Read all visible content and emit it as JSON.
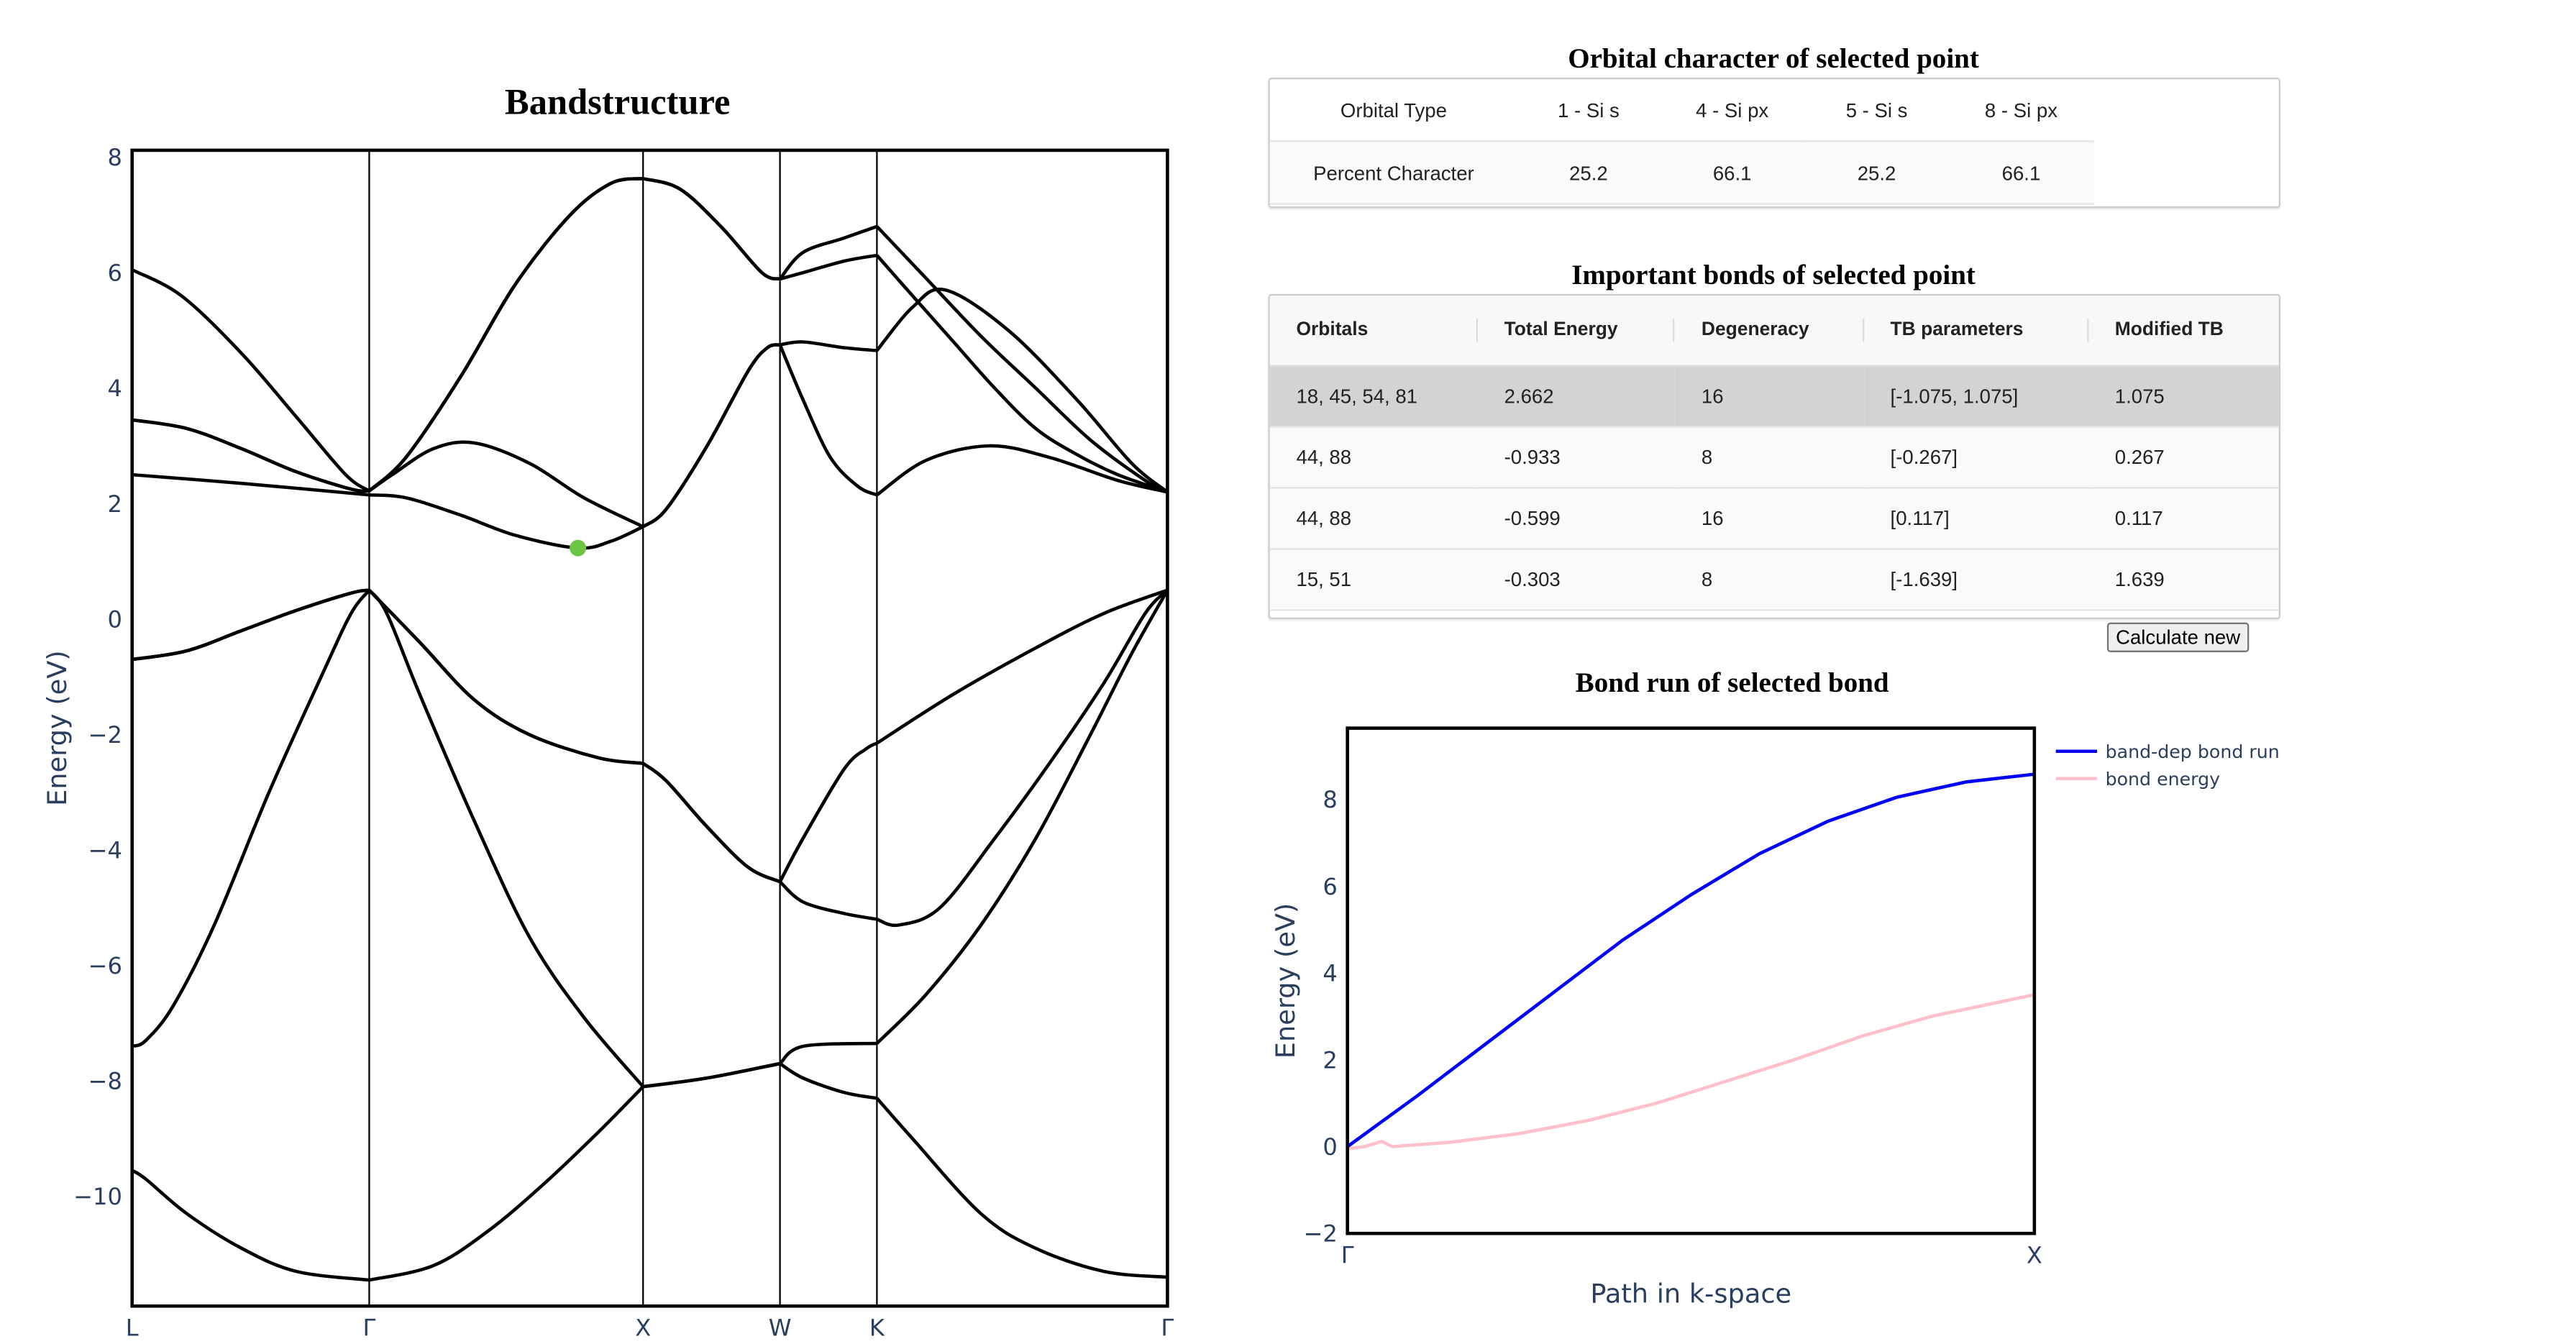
{
  "orbital_panel": {
    "title": "Orbital character of selected point",
    "header": [
      "Orbital Type",
      "1 - Si s",
      "4 - Si px",
      "5 - Si s",
      "8 - Si px"
    ],
    "row": [
      "Percent Character",
      "25.2",
      "66.1",
      "25.2",
      "66.1"
    ]
  },
  "bonds_panel": {
    "title": "Important bonds of selected point",
    "columns": [
      "Orbitals",
      "Total Energy",
      "Degeneracy",
      "TB parameters",
      "Modified TB"
    ],
    "rows": [
      [
        "18, 45, 54, 81",
        "2.662",
        "16",
        "[-1.075, 1.075]",
        "1.075"
      ],
      [
        "44, 88",
        "-0.933",
        "8",
        "[-0.267]",
        "0.267"
      ],
      [
        "44, 88",
        "-0.599",
        "16",
        "[0.117]",
        "0.117"
      ],
      [
        "15, 51",
        "-0.303",
        "8",
        "[-1.639]",
        "1.639"
      ]
    ],
    "selected_row": 0,
    "selected_row_color": "#d3d3d3",
    "calculate_button": "Calculate new"
  },
  "chart_data": [
    {
      "type": "line",
      "title": "Bandstructure",
      "xlabel": "",
      "ylabel": "Energy (eV)",
      "xlim": [
        0,
        3.781
      ],
      "ylim": [
        -11.9,
        8.12
      ],
      "grid": false,
      "line_color": "#000000",
      "xticks": [
        {
          "value": 0,
          "label": "L"
        },
        {
          "value": 0.866,
          "label": "Γ"
        },
        {
          "value": 1.866,
          "label": "X"
        },
        {
          "value": 2.366,
          "label": "W"
        },
        {
          "value": 2.72,
          "label": "K"
        },
        {
          "value": 3.781,
          "label": "Γ"
        }
      ],
      "yticks": [
        {
          "value": 8,
          "label": "8"
        },
        {
          "value": 6,
          "label": "6"
        },
        {
          "value": 4,
          "label": "4"
        },
        {
          "value": 2,
          "label": "2"
        },
        {
          "value": 0,
          "label": "0"
        },
        {
          "value": -2,
          "label": "−2"
        },
        {
          "value": -4,
          "label": "−4"
        },
        {
          "value": -6,
          "label": "−6"
        },
        {
          "value": -8,
          "label": "−8"
        },
        {
          "value": -10,
          "label": "−10"
        }
      ],
      "selected_point": {
        "x": 1.628,
        "y": 1.23,
        "color": "#6cc644"
      },
      "series": [
        {
          "points": [
            [
              0,
              -9.55
            ],
            [
              0.05,
              -9.7
            ],
            [
              0.2,
              -10.3
            ],
            [
              0.4,
              -10.9
            ],
            [
              0.6,
              -11.3
            ],
            [
              0.866,
              -11.45
            ],
            [
              1.1,
              -11.2
            ],
            [
              1.3,
              -10.6
            ],
            [
              1.5,
              -9.8
            ],
            [
              1.7,
              -8.9
            ],
            [
              1.866,
              -8.1
            ],
            [
              2.1,
              -7.95
            ],
            [
              2.366,
              -7.7
            ],
            [
              2.45,
              -7.95
            ],
            [
              2.6,
              -8.2
            ],
            [
              2.72,
              -8.3
            ],
            [
              2.85,
              -9.0
            ],
            [
              3.1,
              -10.3
            ],
            [
              3.3,
              -10.9
            ],
            [
              3.55,
              -11.3
            ],
            [
              3.781,
              -11.4
            ]
          ]
        },
        {
          "points": [
            [
              0,
              -7.4
            ],
            [
              0.05,
              -7.3
            ],
            [
              0.15,
              -6.7
            ],
            [
              0.3,
              -5.3
            ],
            [
              0.5,
              -3.0
            ],
            [
              0.7,
              -0.9
            ],
            [
              0.8,
              0.1
            ],
            [
              0.866,
              0.5
            ],
            [
              0.93,
              0.1
            ],
            [
              1.05,
              -1.3
            ],
            [
              1.25,
              -3.5
            ],
            [
              1.45,
              -5.5
            ],
            [
              1.65,
              -6.9
            ],
            [
              1.866,
              -8.1
            ],
            [
              2.1,
              -7.95
            ],
            [
              2.366,
              -7.7
            ],
            [
              2.45,
              -7.4
            ],
            [
              2.72,
              -7.35
            ],
            [
              2.9,
              -6.5
            ],
            [
              3.1,
              -5.3
            ],
            [
              3.3,
              -3.8
            ],
            [
              3.5,
              -2.0
            ],
            [
              3.65,
              -0.6
            ],
            [
              3.781,
              0.5
            ]
          ]
        },
        {
          "points": [
            [
              0,
              -0.7
            ],
            [
              0.2,
              -0.55
            ],
            [
              0.4,
              -0.2
            ],
            [
              0.6,
              0.15
            ],
            [
              0.8,
              0.45
            ],
            [
              0.866,
              0.5
            ],
            [
              1.05,
              -0.4
            ],
            [
              1.25,
              -1.4
            ],
            [
              1.45,
              -2.0
            ],
            [
              1.7,
              -2.4
            ],
            [
              1.866,
              -2.5
            ],
            [
              1.95,
              -2.8
            ],
            [
              2.1,
              -3.6
            ],
            [
              2.25,
              -4.3
            ],
            [
              2.366,
              -4.55
            ],
            [
              2.45,
              -4.9
            ],
            [
              2.6,
              -5.1
            ],
            [
              2.72,
              -5.2
            ],
            [
              2.8,
              -5.3
            ],
            [
              2.95,
              -5.0
            ],
            [
              3.15,
              -3.8
            ],
            [
              3.35,
              -2.5
            ],
            [
              3.55,
              -1.1
            ],
            [
              3.7,
              0.1
            ],
            [
              3.781,
              0.5
            ]
          ]
        },
        {
          "points": [
            [
              0,
              -0.7
            ],
            [
              0.2,
              -0.55
            ],
            [
              0.4,
              -0.2
            ],
            [
              0.6,
              0.15
            ],
            [
              0.8,
              0.45
            ],
            [
              0.866,
              0.5
            ],
            [
              1.05,
              -0.4
            ],
            [
              1.25,
              -1.4
            ],
            [
              1.45,
              -2.0
            ],
            [
              1.7,
              -2.4
            ],
            [
              1.866,
              -2.5
            ],
            [
              1.95,
              -2.8
            ],
            [
              2.1,
              -3.6
            ],
            [
              2.25,
              -4.3
            ],
            [
              2.366,
              -4.55
            ],
            [
              2.45,
              -3.8
            ],
            [
              2.6,
              -2.6
            ],
            [
              2.68,
              -2.25
            ],
            [
              2.72,
              -2.15
            ],
            [
              3.0,
              -1.3
            ],
            [
              3.3,
              -0.5
            ],
            [
              3.55,
              0.1
            ],
            [
              3.781,
              0.5
            ]
          ]
        },
        {
          "points": [
            [
              0,
              2.5
            ],
            [
              0.4,
              2.35
            ],
            [
              0.866,
              2.15
            ],
            [
              1.0,
              2.1
            ],
            [
              1.2,
              1.8
            ],
            [
              1.4,
              1.45
            ],
            [
              1.628,
              1.23
            ],
            [
              1.75,
              1.35
            ],
            [
              1.866,
              1.6
            ],
            [
              1.95,
              1.9
            ],
            [
              2.1,
              3.0
            ],
            [
              2.25,
              4.3
            ],
            [
              2.32,
              4.7
            ],
            [
              2.366,
              4.75
            ],
            [
              2.45,
              3.8
            ],
            [
              2.55,
              2.8
            ],
            [
              2.65,
              2.3
            ],
            [
              2.72,
              2.15
            ],
            [
              2.9,
              2.75
            ],
            [
              3.13,
              3.0
            ],
            [
              3.35,
              2.8
            ],
            [
              3.6,
              2.4
            ],
            [
              3.781,
              2.2
            ]
          ]
        },
        {
          "points": [
            [
              0,
              3.45
            ],
            [
              0.2,
              3.3
            ],
            [
              0.4,
              2.95
            ],
            [
              0.6,
              2.55
            ],
            [
              0.8,
              2.25
            ],
            [
              0.866,
              2.22
            ],
            [
              0.95,
              2.5
            ],
            [
              1.1,
              2.95
            ],
            [
              1.25,
              3.05
            ],
            [
              1.45,
              2.7
            ],
            [
              1.65,
              2.1
            ],
            [
              1.866,
              1.6
            ],
            [
              1.95,
              1.9
            ],
            [
              2.1,
              3.0
            ],
            [
              2.25,
              4.3
            ],
            [
              2.32,
              4.7
            ],
            [
              2.366,
              4.75
            ],
            [
              2.45,
              4.8
            ],
            [
              2.6,
              4.7
            ],
            [
              2.72,
              4.65
            ],
            [
              2.85,
              5.4
            ],
            [
              2.97,
              5.7
            ],
            [
              3.2,
              5.0
            ],
            [
              3.45,
              3.8
            ],
            [
              3.65,
              2.7
            ],
            [
              3.781,
              2.2
            ]
          ]
        },
        {
          "points": [
            [
              0,
              3.45
            ],
            [
              0.2,
              3.3
            ],
            [
              0.4,
              2.95
            ],
            [
              0.6,
              2.55
            ],
            [
              0.8,
              2.25
            ],
            [
              0.866,
              2.22
            ],
            [
              1.0,
              2.8
            ],
            [
              1.2,
              4.2
            ],
            [
              1.4,
              5.8
            ],
            [
              1.6,
              7.0
            ],
            [
              1.75,
              7.55
            ],
            [
              1.866,
              7.63
            ],
            [
              2.0,
              7.45
            ],
            [
              2.15,
              6.8
            ],
            [
              2.3,
              6.0
            ],
            [
              2.366,
              5.89
            ],
            [
              2.45,
              6.0
            ],
            [
              2.6,
              6.2
            ],
            [
              2.72,
              6.3
            ],
            [
              2.85,
              5.6
            ],
            [
              3.0,
              4.8
            ],
            [
              3.15,
              4.0
            ],
            [
              3.3,
              3.3
            ],
            [
              3.45,
              2.85
            ],
            [
              3.6,
              2.5
            ],
            [
              3.781,
              2.2
            ]
          ]
        },
        {
          "points": [
            [
              0,
              6.05
            ],
            [
              0.18,
              5.6
            ],
            [
              0.4,
              4.6
            ],
            [
              0.6,
              3.5
            ],
            [
              0.78,
              2.5
            ],
            [
              0.866,
              2.22
            ],
            [
              1.0,
              2.8
            ],
            [
              1.2,
              4.2
            ],
            [
              1.4,
              5.8
            ],
            [
              1.6,
              7.0
            ],
            [
              1.75,
              7.55
            ],
            [
              1.866,
              7.63
            ],
            [
              2.0,
              7.45
            ],
            [
              2.15,
              6.8
            ],
            [
              2.3,
              6.0
            ],
            [
              2.366,
              5.89
            ],
            [
              2.45,
              6.35
            ],
            [
              2.6,
              6.6
            ],
            [
              2.72,
              6.8
            ],
            [
              2.9,
              5.9
            ],
            [
              3.1,
              4.9
            ],
            [
              3.3,
              4.0
            ],
            [
              3.5,
              3.1
            ],
            [
              3.7,
              2.4
            ],
            [
              3.781,
              2.2
            ]
          ]
        }
      ]
    },
    {
      "type": "line",
      "title": "Bond run of selected bond",
      "xlabel": "Path in k-space",
      "ylabel": "Energy (eV)",
      "xlim": [
        0,
        1
      ],
      "ylim": [
        -2,
        9.64
      ],
      "grid": false,
      "legend": "right",
      "xticks": [
        {
          "value": 0,
          "label": "Γ"
        },
        {
          "value": 1,
          "label": "X"
        }
      ],
      "yticks": [
        {
          "value": 8,
          "label": "8"
        },
        {
          "value": 6,
          "label": "6"
        },
        {
          "value": 4,
          "label": "4"
        },
        {
          "value": 2,
          "label": "2"
        },
        {
          "value": 0,
          "label": "0"
        },
        {
          "value": -2,
          "label": "−2"
        }
      ],
      "series": [
        {
          "name": "band-dep bond run",
          "color": "#0000ff",
          "x": [
            0,
            0.1,
            0.2,
            0.3,
            0.4,
            0.5,
            0.6,
            0.7,
            0.8,
            0.9,
            1.0
          ],
          "y": [
            0,
            1.15,
            2.35,
            3.55,
            4.75,
            5.8,
            6.75,
            7.5,
            8.05,
            8.4,
            8.58
          ]
        },
        {
          "name": "bond energy",
          "color": "#ffc0cb",
          "x": [
            0,
            0.025,
            0.05,
            0.065,
            0.15,
            0.25,
            0.35,
            0.45,
            0.55,
            0.65,
            0.75,
            0.85,
            1.0
          ],
          "y": [
            -0.05,
            0.0,
            0.12,
            0.0,
            0.1,
            0.3,
            0.6,
            1.0,
            1.5,
            2.0,
            2.55,
            3.0,
            3.5
          ]
        }
      ]
    }
  ]
}
